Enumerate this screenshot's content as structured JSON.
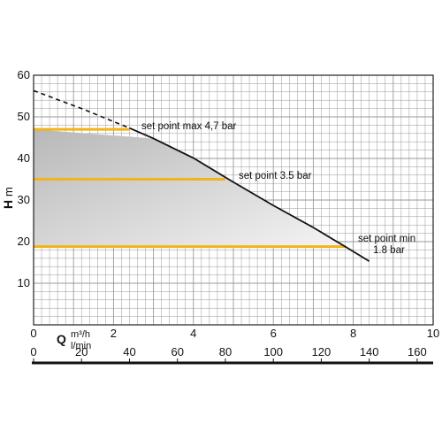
{
  "chart_data": {
    "type": "line",
    "title": "",
    "ylabel": "H m",
    "ylabel_parts": {
      "letter": "H",
      "unit": "m"
    },
    "xlabel_letter": "Q",
    "x_units_top": "m³/h",
    "x_units_bottom": "l/min",
    "xlim_m3h": [
      0,
      10
    ],
    "xlim_lmin": [
      0,
      166.67
    ],
    "ylim": [
      0,
      60
    ],
    "grid": true,
    "y_ticks": [
      0,
      10,
      20,
      30,
      40,
      50,
      60
    ],
    "x_ticks_m3h": [
      0,
      2,
      4,
      6,
      8,
      10
    ],
    "x_ticks_lmin": [
      0,
      20,
      40,
      60,
      80,
      100,
      120,
      140,
      160
    ],
    "pump_curve_dashed": {
      "x": [
        0,
        1.2,
        2.4
      ],
      "y": [
        56.3,
        52.0,
        47.3
      ]
    },
    "pump_curve": {
      "x": [
        2.4,
        3.0,
        4.0,
        5.0,
        6.0,
        7.0,
        7.8,
        8.4
      ],
      "y": [
        47.3,
        44.8,
        40.1,
        34.3,
        28.7,
        23.4,
        18.8,
        15.3
      ]
    },
    "setpoints": [
      {
        "label": "set point max 4,7 bar",
        "y": 47.0,
        "x_end": 2.4
      },
      {
        "label": "set point 3.5 bar",
        "y": 35.0,
        "x_end": 4.8
      },
      {
        "label_line1": "set point min",
        "label_line2": "1.8 bar",
        "y": 18.8,
        "x_end": 7.8
      }
    ],
    "colors": {
      "setpoint_line": "#f2b418",
      "curve": "#111111",
      "grid": "#999999",
      "shade_dark": "#b8b8b8",
      "shade_light": "#f4f4f4"
    }
  }
}
